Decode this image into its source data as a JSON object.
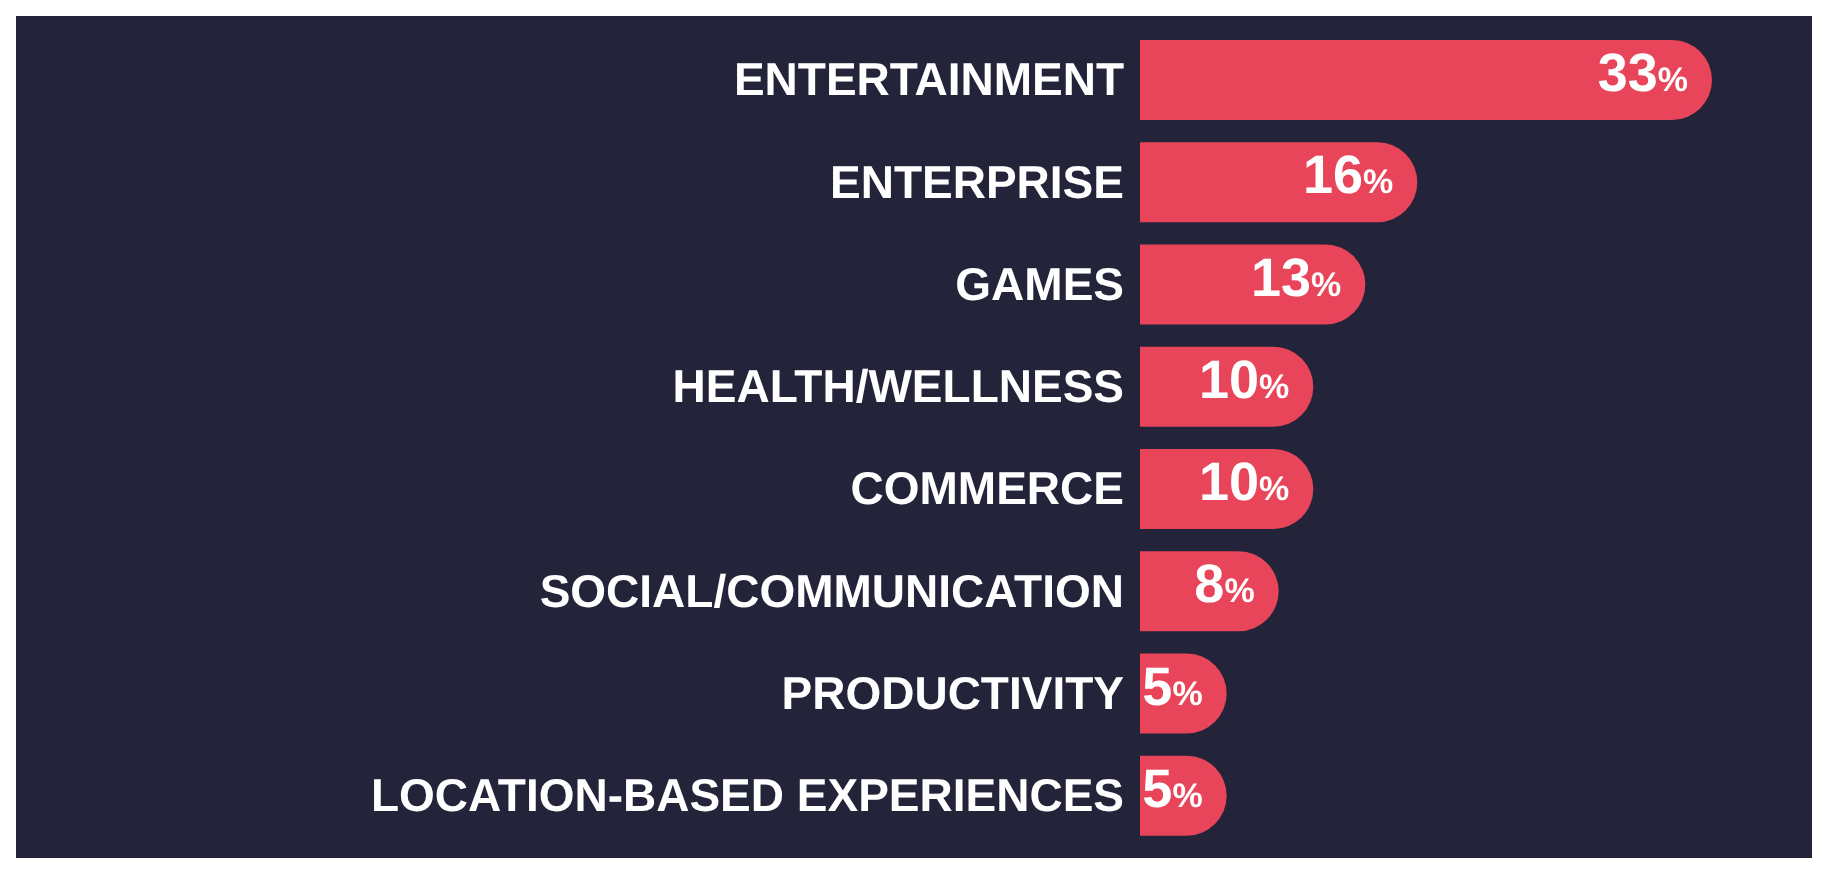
{
  "chart_data": {
    "type": "bar",
    "orientation": "horizontal",
    "categories": [
      "ENTERTAINMENT",
      "ENTERPRISE",
      "GAMES",
      "HEALTH/WELLNESS",
      "COMMERCE",
      "SOCIAL/COMMUNICATION",
      "PRODUCTIVITY",
      "LOCATION-BASED EXPERIENCES"
    ],
    "values": [
      33,
      16,
      13,
      10,
      10,
      8,
      5,
      5
    ],
    "value_labels": [
      "33%",
      "16%",
      "13%",
      "10%",
      "10%",
      "8%",
      "5%",
      "5%"
    ],
    "color": "#e8455a"
  }
}
